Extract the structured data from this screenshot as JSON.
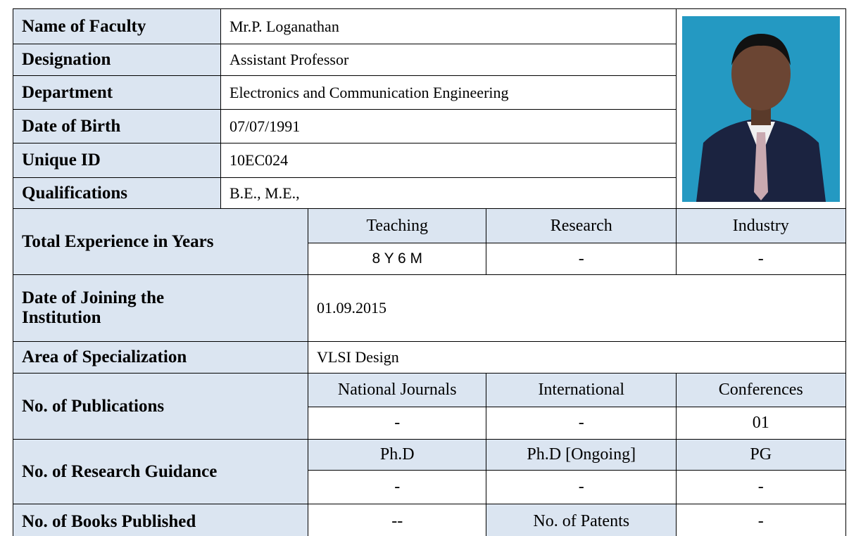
{
  "profile": {
    "rows": [
      {
        "label": "Name of Faculty",
        "value": "Mr.P. Loganathan"
      },
      {
        "label": "Designation",
        "value": "Assistant Professor"
      },
      {
        "label": "Department",
        "value": "Electronics and Communication Engineering"
      },
      {
        "label": "Date of Birth",
        "value": "07/07/1991"
      },
      {
        "label": "Unique ID",
        "value": "10EC024"
      },
      {
        "label": "Qualifications",
        "value": "B.E., M.E.,"
      }
    ]
  },
  "experience": {
    "label": "Total Experience in Years",
    "headers": [
      "Teaching",
      "Research",
      "Industry"
    ],
    "values": [
      "8 Y 6 M",
      "-",
      "-"
    ]
  },
  "joining": {
    "label": "Date of Joining the Institution",
    "value": "01.09.2015"
  },
  "specialization": {
    "label": "Area of Specialization",
    "value": "VLSI Design"
  },
  "publications": {
    "label": "No. of  Publications",
    "headers": [
      "National Journals",
      "International",
      "Conferences"
    ],
    "values": [
      "-",
      "-",
      "01"
    ]
  },
  "guidance": {
    "label": "No. of Research Guidance",
    "headers": [
      "Ph.D",
      "Ph.D [Ongoing]",
      "PG"
    ],
    "values": [
      "-",
      "-",
      "-"
    ]
  },
  "books": {
    "label": "No. of Books Published",
    "value": "--",
    "patents_label": "No. of Patents",
    "patents_value": "-"
  }
}
